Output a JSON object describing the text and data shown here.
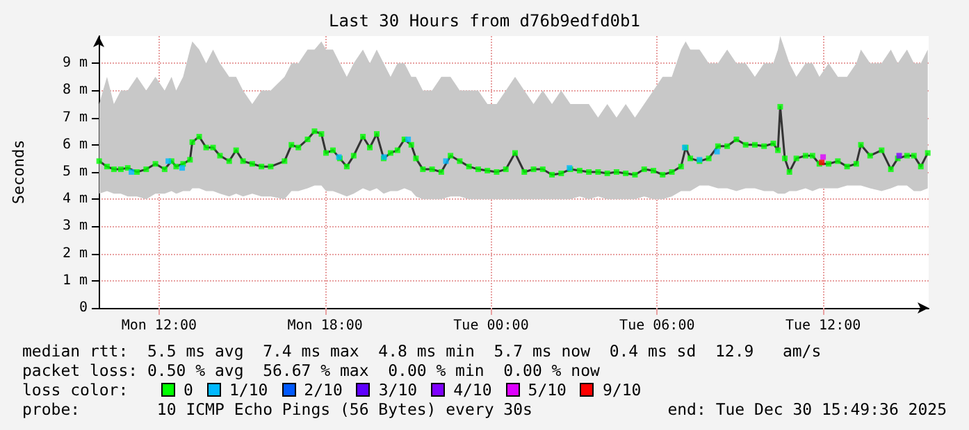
{
  "chart_data": {
    "type": "line",
    "title": "Last 30 Hours from d76b9edfd0b1",
    "ylabel": "Seconds",
    "legend_title": "loss color:",
    "legend": "bottom",
    "grid": true,
    "marker": "none",
    "xlim": [
      "2025-12-29T09:49",
      "2025-12-30T15:49"
    ],
    "xticks": [
      {
        "value": "2025-12-29T12:00",
        "label": "Mon 12:00"
      },
      {
        "value": "2025-12-29T18:00",
        "label": "Mon 18:00"
      },
      {
        "value": "2025-12-30T00:00",
        "label": "Tue 00:00"
      },
      {
        "value": "2025-12-30T06:00",
        "label": "Tue 06:00"
      },
      {
        "value": "2025-12-30T12:00",
        "label": "Tue 12:00"
      }
    ],
    "ylim": [
      0,
      10
    ],
    "yticks": [
      0,
      {
        "value": 1,
        "label": "1 m"
      },
      {
        "value": 2,
        "label": "2 m"
      },
      {
        "value": 3,
        "label": "3 m"
      },
      {
        "value": 4,
        "label": "4 m"
      },
      {
        "value": 5,
        "label": "5 m"
      },
      {
        "value": 6,
        "label": "6 m"
      },
      {
        "value": 7,
        "label": "7 m"
      },
      {
        "value": 8,
        "label": "8 m"
      },
      {
        "value": 9,
        "label": "9 m"
      }
    ],
    "x": [
      "2025-12-29T09:50",
      "2025-12-29T10:07",
      "2025-12-29T10:22",
      "2025-12-29T10:37",
      "2025-12-29T10:52",
      "2025-12-29T11:12",
      "2025-12-29T11:32",
      "2025-12-29T11:52",
      "2025-12-29T12:12",
      "2025-12-29T12:27",
      "2025-12-29T12:37",
      "2025-12-29T12:52",
      "2025-12-29T13:07",
      "2025-12-29T13:12",
      "2025-12-29T13:27",
      "2025-12-29T13:42",
      "2025-12-29T13:57",
      "2025-12-29T14:12",
      "2025-12-29T14:32",
      "2025-12-29T14:47",
      "2025-12-29T15:02",
      "2025-12-29T15:22",
      "2025-12-29T15:42",
      "2025-12-29T16:02",
      "2025-12-29T16:32",
      "2025-12-29T16:47",
      "2025-12-29T17:02",
      "2025-12-29T17:22",
      "2025-12-29T17:37",
      "2025-12-29T17:52",
      "2025-12-29T18:02",
      "2025-12-29T18:17",
      "2025-12-29T18:32",
      "2025-12-29T18:47",
      "2025-12-29T19:02",
      "2025-12-29T19:22",
      "2025-12-29T19:37",
      "2025-12-29T19:52",
      "2025-12-29T20:07",
      "2025-12-29T20:22",
      "2025-12-29T20:37",
      "2025-12-29T20:52",
      "2025-12-29T21:07",
      "2025-12-29T21:17",
      "2025-12-29T21:32",
      "2025-12-29T21:52",
      "2025-12-29T22:12",
      "2025-12-29T22:32",
      "2025-12-29T22:52",
      "2025-12-29T23:12",
      "2025-12-29T23:32",
      "2025-12-29T23:52",
      "2025-12-30T00:12",
      "2025-12-30T00:32",
      "2025-12-30T00:52",
      "2025-12-30T01:12",
      "2025-12-30T01:32",
      "2025-12-30T01:52",
      "2025-12-30T02:12",
      "2025-12-30T02:32",
      "2025-12-30T02:52",
      "2025-12-30T03:12",
      "2025-12-30T03:32",
      "2025-12-30T03:52",
      "2025-12-30T04:12",
      "2025-12-30T04:32",
      "2025-12-30T04:52",
      "2025-12-30T05:12",
      "2025-12-30T05:32",
      "2025-12-30T05:52",
      "2025-12-30T06:12",
      "2025-12-30T06:32",
      "2025-12-30T06:52",
      "2025-12-30T07:02",
      "2025-12-30T07:12",
      "2025-12-30T07:32",
      "2025-12-30T07:52",
      "2025-12-30T08:12",
      "2025-12-30T08:32",
      "2025-12-30T08:52",
      "2025-12-30T09:12",
      "2025-12-30T09:32",
      "2025-12-30T09:52",
      "2025-12-30T10:12",
      "2025-12-30T10:22",
      "2025-12-30T10:27",
      "2025-12-30T10:37",
      "2025-12-30T10:47",
      "2025-12-30T11:02",
      "2025-12-30T11:22",
      "2025-12-30T11:37",
      "2025-12-30T11:52",
      "2025-12-30T12:12",
      "2025-12-30T12:32",
      "2025-12-30T12:52",
      "2025-12-30T13:12",
      "2025-12-30T13:22",
      "2025-12-30T13:42",
      "2025-12-30T14:07",
      "2025-12-30T14:27",
      "2025-12-30T14:42",
      "2025-12-30T15:02",
      "2025-12-30T15:17",
      "2025-12-30T15:32",
      "2025-12-30T15:47"
    ],
    "series": [
      {
        "color": "#333333",
        "values": [
          5.4,
          5.2,
          5.1,
          5.1,
          5.15,
          5.0,
          5.1,
          5.3,
          5.1,
          5.4,
          5.2,
          5.3,
          5.45,
          6.1,
          6.3,
          5.9,
          5.9,
          5.6,
          5.4,
          5.8,
          5.4,
          5.3,
          5.2,
          5.2,
          5.4,
          6.0,
          5.9,
          6.2,
          6.5,
          6.4,
          5.7,
          5.8,
          5.5,
          5.2,
          5.6,
          6.3,
          5.9,
          6.4,
          5.5,
          5.7,
          5.8,
          6.2,
          6.0,
          5.5,
          5.1,
          5.1,
          5.0,
          5.6,
          5.4,
          5.2,
          5.1,
          5.05,
          5.0,
          5.1,
          5.7,
          5.0,
          5.1,
          5.1,
          4.9,
          4.95,
          5.1,
          5.05,
          5.0,
          5.0,
          4.95,
          5.0,
          4.95,
          4.9,
          5.1,
          5.05,
          4.9,
          5.0,
          5.2,
          5.9,
          5.5,
          5.4,
          5.5,
          5.95,
          5.95,
          6.2,
          6.0,
          6.0,
          5.95,
          6.05,
          5.8,
          7.4,
          5.5,
          5.0,
          5.5,
          5.6,
          5.6,
          5.3,
          5.3,
          5.4,
          5.2,
          5.3,
          6.0,
          5.6,
          5.8,
          5.1,
          5.5,
          5.6,
          5.6,
          5.2,
          5.7
        ],
        "upper": [
          7.5,
          8.5,
          7.5,
          8,
          8,
          8.5,
          8,
          8.5,
          8,
          8.5,
          8,
          8.5,
          9.5,
          9.8,
          9.5,
          9,
          9.5,
          9,
          8.5,
          8.5,
          8,
          7.5,
          8,
          8,
          8.5,
          9,
          9,
          9.5,
          9.5,
          9.8,
          9.5,
          9.5,
          9,
          8.5,
          9,
          9.5,
          9,
          9.5,
          9,
          8.5,
          9,
          9,
          8.5,
          8.5,
          8,
          8,
          8.5,
          8.5,
          8,
          8,
          8,
          7.5,
          7.5,
          8,
          8.5,
          8,
          7.5,
          8,
          7.5,
          8,
          7.5,
          7.5,
          7.5,
          7,
          7.5,
          7,
          7.5,
          7,
          7.5,
          8,
          8.5,
          8.5,
          9.5,
          9.8,
          9.5,
          9.5,
          9,
          9,
          9.5,
          9,
          9,
          8.5,
          9,
          9,
          9.5,
          10,
          9.5,
          9,
          8.5,
          9,
          9,
          8.5,
          9,
          8.5,
          8.5,
          9,
          9.5,
          9,
          9,
          9.5,
          9,
          9.5,
          9,
          9,
          9.5
        ],
        "lower": [
          4.2,
          4.3,
          4.2,
          4.2,
          4.1,
          4.1,
          4.0,
          4.2,
          4.2,
          4.3,
          4.2,
          4.3,
          4.3,
          4.4,
          4.4,
          4.3,
          4.3,
          4.2,
          4.1,
          4.2,
          4.1,
          4.2,
          4.1,
          4.1,
          4.0,
          4.3,
          4.3,
          4.4,
          4.5,
          4.5,
          4.3,
          4.3,
          4.2,
          4.1,
          4.2,
          4.4,
          4.3,
          4.4,
          4.2,
          4.3,
          4.3,
          4.4,
          4.3,
          4.1,
          4.0,
          4.0,
          4.0,
          4.1,
          4.1,
          4.0,
          4.0,
          4.0,
          4.0,
          4.0,
          4.0,
          4.0,
          4.0,
          4.0,
          4.0,
          4.0,
          4.0,
          4.1,
          4.0,
          4.1,
          4.0,
          4.0,
          4.0,
          4.0,
          4.1,
          4.0,
          4.0,
          4.1,
          4.3,
          4.3,
          4.3,
          4.5,
          4.5,
          4.4,
          4.4,
          4.3,
          4.4,
          4.4,
          4.3,
          4.3,
          4.2,
          4.2,
          4.2,
          4.3,
          4.3,
          4.4,
          4.3,
          4.4,
          4.4,
          4.4,
          4.5,
          4.5,
          4.5,
          4.4,
          4.3,
          4.4,
          4.5,
          4.5,
          4.3,
          4.3,
          4.4
        ]
      },
      {
        "type": "scatter",
        "name": "0",
        "color": "#00ff00",
        "marker": "square",
        "values": [
          5.4,
          5.2,
          5.1,
          5.1,
          5.15,
          5.0,
          5.1,
          5.3,
          5.1,
          5.4,
          5.2,
          5.3,
          5.45,
          6.1,
          6.3,
          5.9,
          5.9,
          5.6,
          5.4,
          5.8,
          5.4,
          5.3,
          5.2,
          5.2,
          5.4,
          6.0,
          5.9,
          6.2,
          6.5,
          6.4,
          5.7,
          5.8,
          5.5,
          5.2,
          5.6,
          6.3,
          5.9,
          6.4,
          5.5,
          5.7,
          5.8,
          6.2,
          6.0,
          5.5,
          5.1,
          5.1,
          5.0,
          5.6,
          5.4,
          5.2,
          5.1,
          5.05,
          5.0,
          5.1,
          5.7,
          5.0,
          5.1,
          5.1,
          4.9,
          4.95,
          5.1,
          5.05,
          5.0,
          5.0,
          4.95,
          5.0,
          4.95,
          4.9,
          5.1,
          5.05,
          4.9,
          5.0,
          5.2,
          5.9,
          5.5,
          5.4,
          5.5,
          5.95,
          5.95,
          6.2,
          6.0,
          6.0,
          5.95,
          6.05,
          5.8,
          7.4,
          5.5,
          5.0,
          5.5,
          5.6,
          5.6,
          5.3,
          5.3,
          5.4,
          5.2,
          5.3,
          6.0,
          5.6,
          5.8,
          5.1,
          5.5,
          5.6,
          5.6,
          5.2,
          5.7
        ]
      },
      {
        "type": "scatter",
        "name": "1/10",
        "color": "#00b8ff",
        "marker": "square",
        "x": [
          "2025-12-29T11:00",
          "2025-12-29T12:20",
          "2025-12-29T12:50",
          "2025-12-29T18:30",
          "2025-12-29T20:08",
          "2025-12-29T21:00",
          "2025-12-29T22:22",
          "2025-12-30T02:50",
          "2025-12-30T07:00",
          "2025-12-30T07:32",
          "2025-12-30T08:10"
        ],
        "values": [
          5.0,
          5.4,
          5.15,
          5.55,
          5.55,
          6.2,
          5.4,
          5.15,
          5.9,
          5.45,
          5.75
        ]
      },
      {
        "type": "scatter",
        "name": "2/10",
        "color": "#0059ff",
        "marker": "square",
        "values": [
          null,
          null,
          null,
          null,
          null,
          null,
          null,
          null,
          null,
          null,
          null,
          null,
          null,
          null,
          null,
          null,
          null,
          null,
          null,
          null,
          null,
          null,
          null,
          null,
          null,
          null,
          null,
          null,
          null,
          null,
          null,
          null,
          null,
          null,
          null,
          null,
          null,
          null,
          null,
          null,
          null,
          null,
          null,
          null,
          null,
          null,
          null,
          null,
          null,
          null,
          null,
          null,
          null,
          null,
          null,
          null,
          null,
          null,
          null,
          null,
          null,
          null,
          null,
          null,
          null,
          null,
          null,
          null,
          null,
          null,
          null,
          null,
          null,
          null,
          null,
          null,
          null,
          null,
          null,
          null,
          null,
          null,
          null,
          null,
          null,
          null,
          null,
          null,
          null,
          null,
          null,
          null,
          null,
          null,
          null,
          null,
          null,
          null,
          null,
          null,
          null,
          null,
          null,
          null,
          null
        ]
      },
      {
        "type": "scatter",
        "name": "3/10",
        "color": "#5e00ff",
        "marker": "square",
        "values": [
          null,
          null,
          null,
          null,
          null,
          null,
          null,
          null,
          null,
          null,
          null,
          null,
          null,
          null,
          null,
          null,
          null,
          null,
          null,
          null,
          null,
          null,
          null,
          null,
          null,
          null,
          null,
          null,
          null,
          null,
          null,
          null,
          null,
          null,
          null,
          null,
          null,
          null,
          null,
          null,
          null,
          null,
          null,
          null,
          null,
          null,
          null,
          null,
          null,
          null,
          null,
          null,
          null,
          null,
          null,
          null,
          null,
          null,
          null,
          null,
          null,
          null,
          null,
          null,
          null,
          null,
          null,
          null,
          null,
          null,
          null,
          null,
          null,
          null,
          null,
          null,
          null,
          null,
          null,
          null,
          null,
          null,
          null,
          null,
          null,
          null,
          null,
          null,
          null,
          null,
          null,
          null,
          null,
          null,
          null,
          null,
          null,
          null,
          null,
          null,
          null,
          null,
          null,
          null,
          null
        ]
      },
      {
        "type": "scatter",
        "name": "4/10",
        "color": "#7e00ff",
        "marker": "square",
        "x": [
          "2025-12-30T14:45"
        ],
        "values": [
          5.6
        ]
      },
      {
        "type": "scatter",
        "name": "5/10",
        "color": "#dd00ff",
        "marker": "square",
        "x": [
          "2025-12-30T12:00"
        ],
        "values": [
          5.55
        ]
      },
      {
        "type": "scatter",
        "name": "9/10",
        "color": "#ff0000",
        "marker": "square",
        "x": [
          "2025-12-30T11:57"
        ],
        "values": [
          5.35
        ]
      }
    ],
    "annotations": [
      "median rtt:  5.5 ms avg  7.4 ms max  4.8 ms min  5.7 ms now  0.4 ms sd  12.9   am/s",
      "packet loss: 0.50 % avg  56.67 % max  0.00 % min  0.00 % now",
      "probe:        10 ICMP Echo Pings (56 Bytes) every 30s",
      "end: Tue Dec 30 15:49:36 2025"
    ]
  }
}
